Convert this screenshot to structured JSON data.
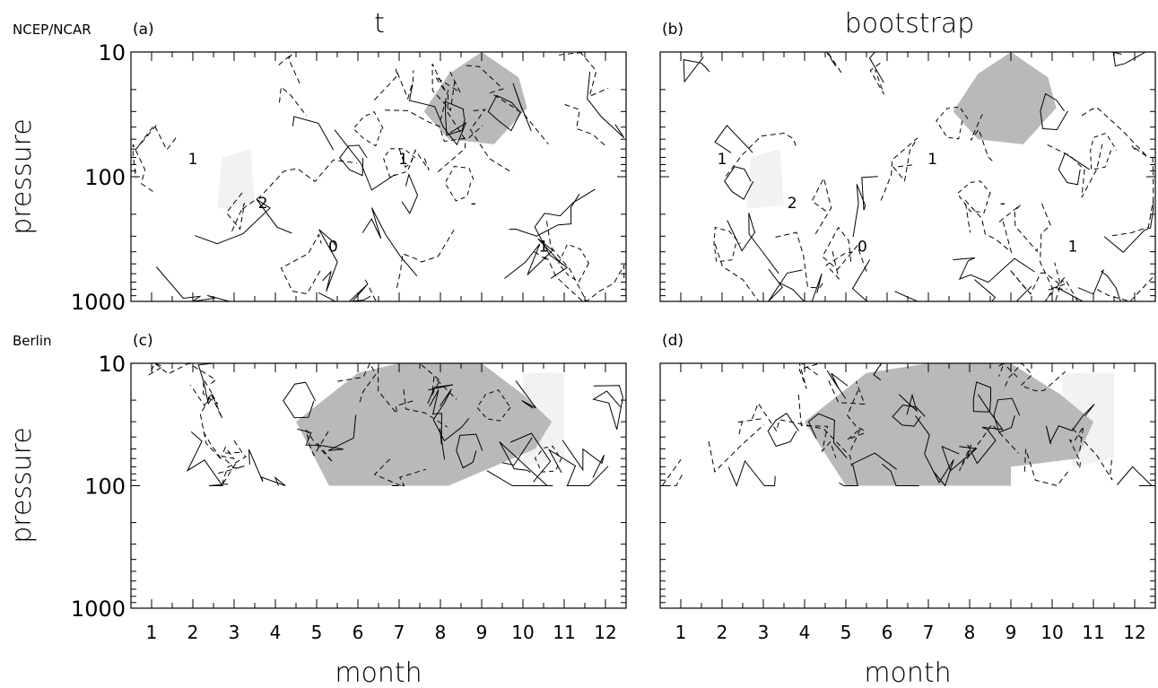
{
  "figure": {
    "row_labels": [
      "NCEP/NCAR",
      "Berlin"
    ],
    "column_titles": [
      "t",
      "bootstrap"
    ]
  },
  "chart_data": [
    {
      "type": "contour",
      "panel": "(a)",
      "dataset": "NCEP/NCAR",
      "title": "t",
      "ylabel": "pressure",
      "xlabel": "",
      "y_scale": "log",
      "y_range": [
        1000,
        10
      ],
      "y_ticks": [
        "10",
        "100",
        "1000"
      ],
      "x_range": [
        0.5,
        12.5
      ],
      "x_ticks": [],
      "contour_labels": [
        "1",
        "2",
        "0",
        "1",
        "-",
        "1"
      ],
      "shading": {
        "dark": [
          [
            8.2,
            15
          ],
          [
            9,
            10
          ],
          [
            9.9,
            16
          ],
          [
            10.1,
            28
          ],
          [
            9.3,
            55
          ],
          [
            8.2,
            50
          ],
          [
            7.6,
            30
          ]
        ],
        "light": [
          [
            2.7,
            70
          ],
          [
            3.4,
            60
          ],
          [
            3.5,
            170
          ],
          [
            2.6,
            180
          ]
        ]
      }
    },
    {
      "type": "contour",
      "panel": "(b)",
      "dataset": "NCEP/NCAR",
      "title": "bootstrap",
      "ylabel": "",
      "xlabel": "",
      "y_scale": "log",
      "y_range": [
        1000,
        10
      ],
      "y_ticks": [],
      "x_range": [
        0.5,
        12.5
      ],
      "x_ticks": [],
      "contour_labels": [
        "1",
        "2",
        "0",
        "1",
        "-",
        "1"
      ],
      "shading": {
        "dark": [
          [
            8.2,
            15
          ],
          [
            9,
            10
          ],
          [
            9.9,
            16
          ],
          [
            10.1,
            28
          ],
          [
            9.3,
            55
          ],
          [
            8.2,
            50
          ],
          [
            7.6,
            30
          ]
        ],
        "light": [
          [
            2.7,
            70
          ],
          [
            3.4,
            60
          ],
          [
            3.5,
            170
          ],
          [
            2.6,
            180
          ]
        ]
      }
    },
    {
      "type": "contour",
      "panel": "(c)",
      "dataset": "Berlin",
      "title": "",
      "ylabel": "pressure",
      "xlabel": "month",
      "y_scale": "log",
      "y_range": [
        1000,
        10
      ],
      "y_ticks": [
        "10",
        "100",
        "1000"
      ],
      "x_range": [
        0.5,
        12.5
      ],
      "x_ticks": [
        "1",
        "2",
        "3",
        "4",
        "5",
        "6",
        "7",
        "8",
        "9",
        "10",
        "11",
        "12"
      ],
      "contour_labels": [],
      "shading": {
        "dark": [
          [
            4.5,
            30
          ],
          [
            6,
            12
          ],
          [
            7,
            10
          ],
          [
            9,
            10
          ],
          [
            10,
            18
          ],
          [
            10.7,
            30
          ],
          [
            10.3,
            50
          ],
          [
            8.2,
            100
          ],
          [
            5.3,
            100
          ]
        ],
        "light": [
          [
            10,
            12
          ],
          [
            11,
            12
          ],
          [
            11,
            60
          ],
          [
            10,
            70
          ]
        ]
      }
    },
    {
      "type": "contour",
      "panel": "(d)",
      "dataset": "Berlin",
      "title": "",
      "ylabel": "",
      "xlabel": "month",
      "y_scale": "log",
      "y_range": [
        1000,
        10
      ],
      "y_ticks": [],
      "x_range": [
        0.5,
        12.5
      ],
      "x_ticks": [
        "1",
        "2",
        "3",
        "4",
        "5",
        "6",
        "7",
        "8",
        "9",
        "10",
        "11",
        "12"
      ],
      "contour_labels": [],
      "shading": {
        "dark": [
          [
            4,
            30
          ],
          [
            5.5,
            12
          ],
          [
            7,
            10
          ],
          [
            9,
            10
          ],
          [
            10.2,
            18
          ],
          [
            11,
            30
          ],
          [
            10.6,
            60
          ],
          [
            9,
            70
          ],
          [
            9,
            100
          ],
          [
            5,
            100
          ]
        ],
        "light": [
          [
            10.2,
            12
          ],
          [
            11.5,
            12
          ],
          [
            11.5,
            60
          ],
          [
            10.5,
            70
          ]
        ]
      }
    }
  ]
}
